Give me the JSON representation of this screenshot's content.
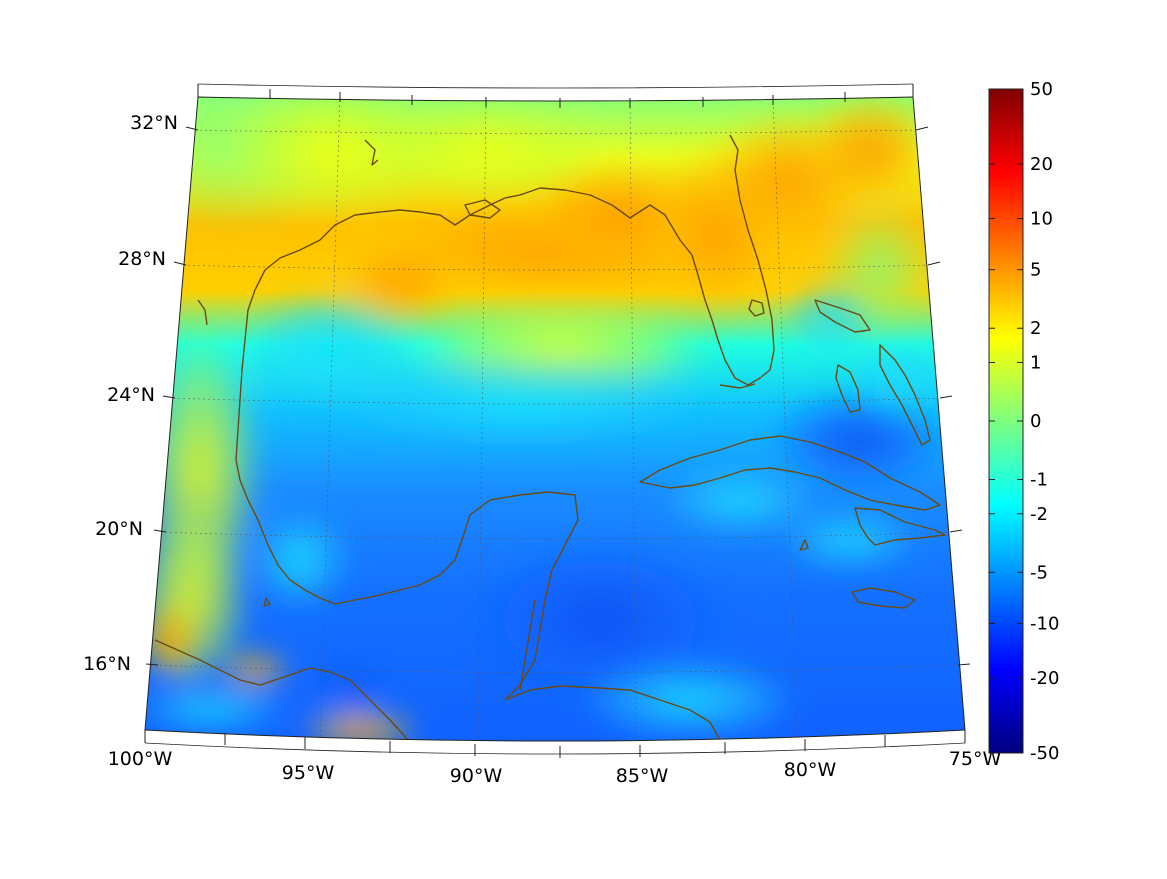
{
  "map": {
    "projection": "conic",
    "lon_range": [
      -100,
      -75
    ],
    "lat_range": [
      14,
      33
    ],
    "lat_labels": [
      "32°N",
      "28°N",
      "24°N",
      "20°N",
      "16°N"
    ],
    "lon_labels": [
      "100°W",
      "95°W",
      "90°W",
      "85°W",
      "80°W",
      "75°W"
    ],
    "coastline_color": "#6b4a12",
    "graticule": true
  },
  "colorbar": {
    "colormap": "jet",
    "tick_labels": [
      "50",
      "20",
      "10",
      "5",
      "2",
      "1",
      "0",
      "-1",
      "-2",
      "-5",
      "-10",
      "-20",
      "-50"
    ],
    "scale": "symmetric-log"
  },
  "regions": {
    "north_gulf_coast": "warm (orange, ~2 to 5)",
    "florida_peninsula": "warm (orange, ~2 to 5)",
    "central_gulf": "cool (cyan to light blue, ~-1 to -5)",
    "yucatan_caribbean": "cold (blue, ~-5 to -10)",
    "southwest_mexico": "mixed yellow/orange with cyan patches"
  }
}
